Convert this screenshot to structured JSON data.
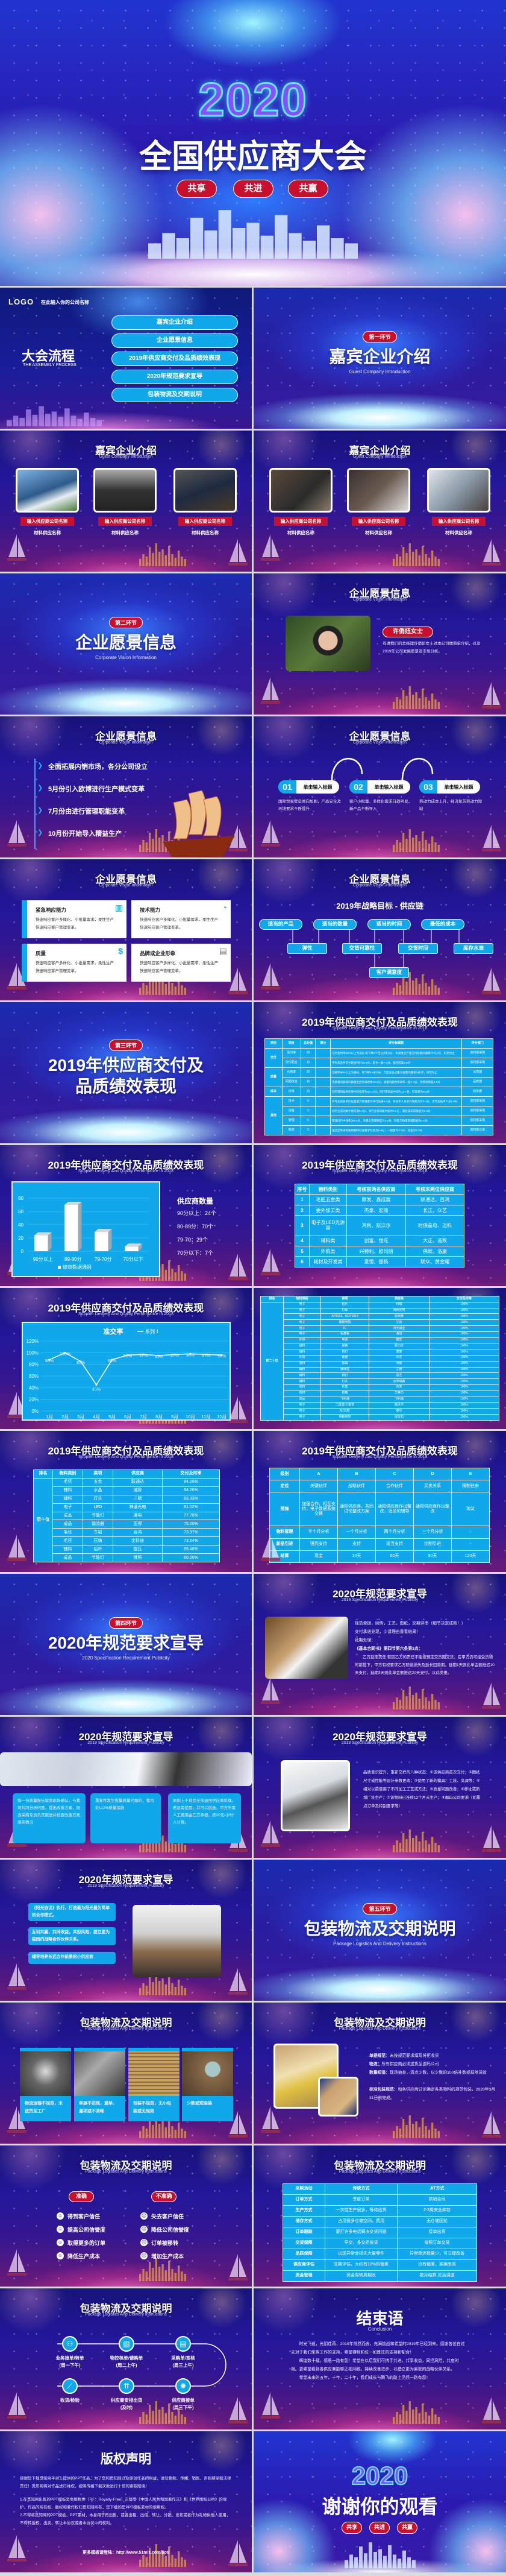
{
  "hero": {
    "year": "2020",
    "title": "全国供应商大会",
    "pills": [
      "共享",
      "共进",
      "共赢"
    ]
  },
  "slides": [
    {
      "type": "agenda",
      "logo": "LOGO",
      "company": "在此输入你的公司名称",
      "title": "大会流程",
      "subtitle": "THE ASSEMBLY PROCESS",
      "items": [
        "嘉宾企业介绍",
        "企业愿景信息",
        "2019年供应商交付及品质绩效表现",
        "2020年规范要求宣导",
        "包装物流及交期说明"
      ]
    },
    {
      "type": "section",
      "badge": "第一环节",
      "title": "嘉宾企业介绍",
      "subtitle": "Guest Company Introduction"
    },
    {
      "type": "photos",
      "title": "嘉宾企业介绍",
      "subtitle": "Guest Company Introduction",
      "items": [
        {
          "name": "输入供应商公司名称",
          "material": "材料供应名称"
        },
        {
          "name": "输入供应商公司名称",
          "material": "材料供应名称"
        },
        {
          "name": "输入供应商公司名称",
          "material": "材料供应名称"
        }
      ]
    },
    {
      "type": "photos",
      "title": "嘉宾企业介绍",
      "subtitle": "Guest Company Introduction",
      "items": [
        {
          "name": "输入供应商公司名称",
          "material": "材料供应名称"
        },
        {
          "name": "输入供应商公司名称",
          "material": "材料供应名称"
        },
        {
          "name": "输入供应商公司名称",
          "material": "材料供应名称"
        }
      ]
    },
    {
      "type": "section",
      "badge": "第二环节",
      "title": "企业愿景信息",
      "subtitle": "Corporate Vision Information"
    },
    {
      "type": "profile",
      "title": "企业愿景信息",
      "subtitle": "Corporate Vision Information",
      "name": "许俏妞女士",
      "text": "有请我们的总经理许俏妞女士对本公司做简单介绍，以及2019年公司发展愿景及市场分析。"
    },
    {
      "type": "bullets",
      "title": "企业愿景信息",
      "subtitle": "Corporate Vision Information",
      "items": [
        "全面拓展内销市场，各分公司设立",
        "5月份引入欧博进行生产模式变革",
        "7月份由进行管理职能变革",
        "10月份开始导入精益生产"
      ]
    },
    {
      "type": "steps",
      "title": "企业愿景信息",
      "subtitle": "Corporate Vision Information",
      "items": [
        {
          "num": "01",
          "label": "单击输入标题",
          "desc": "国际贸易壁垒倾向加剧，产品安全及环境要求不断提升"
        },
        {
          "num": "02",
          "label": "单击输入标题",
          "desc": "客户小批量、多样化需求日趋明显，新产品不断导入"
        },
        {
          "num": "03",
          "label": "单击输入标题",
          "desc": "劳动力成本上升，经济复苏劳动力短缺"
        }
      ]
    },
    {
      "type": "cards",
      "title": "企业愿景信息",
      "subtitle": "Corporate Vision Information",
      "items": [
        {
          "title": "紧急响应能力",
          "text": "快速响应客户多样化、小批量需求，柔性生产快速响应客户管理变革。",
          "icon": "chart-icon"
        },
        {
          "title": "技术能力",
          "text": "快速响应客户多样化、小批量需求，柔性生产快速响应客户管理变革。",
          "icon": "bulb-icon"
        },
        {
          "title": "质量",
          "text": "快速响应客户多样化、小批量需求，柔性生产快速响应客户管理变革。",
          "icon": "dollar-icon"
        },
        {
          "title": "品牌或企业形象",
          "text": "快速响应客户多样化、小批量需求，柔性生产快速响应客户管理变革。",
          "icon": "news-icon"
        }
      ]
    },
    {
      "type": "flow",
      "title": "企业愿景信息",
      "subtitle": "Corporate Vision Information",
      "heading": "2019年战略目标 - 供应链",
      "top": [
        "适当的产品",
        "适当的数量",
        "适当的时间",
        "最低的成本"
      ],
      "middle": [
        "弹性",
        "交货可靠性",
        "交货时间",
        "库存水准"
      ],
      "bottom": "客户满意度"
    },
    {
      "type": "section",
      "badge": "第三环节",
      "title": "2019年供应商交付及\n品质绩效表现",
      "subtitle": ""
    },
    {
      "type": "table",
      "variant": "score",
      "title": "2019年供应商交付及品质绩效表现",
      "subtitle": "Supplier Delivery And Quality Performance In 2018",
      "headers": [
        "类别",
        "项目",
        "总分值",
        "得分",
        "评分标细则",
        "评分部门"
      ],
      "groups": [
        {
          "group": "交付",
          "rows": [
            [
              "及时率",
              "20",
              "",
              "交付及时率90%以上为满分,每下降1个百分点扣1分，年度发生严重交付延期问题累计2分/次，扣完为止",
              "资材部采购"
            ],
            [
              "交付配合",
              "10",
              "",
              "平时及急件交付配合较好10-8分，配合一般7-4分，配合较差3-0分",
              "资材部采购"
            ]
          ]
        },
        {
          "group": "质量",
          "rows": [
            [
              "合格率",
              "20",
              "",
              "合格率98%以上为满分，每下降1%扣1分，年度发生过重大质量问题扣2分/次，扣完为止",
              "品质部"
            ],
            [
              "问题改善",
              "10",
              "",
              "无质量问题或问题发生后有效改善10-8分，质量问题改善效率一般7-4分，改善效果差3-0分",
              "品质部"
            ]
          ]
        },
        {
          "group": "成本",
          "rows": [
            [
              "价格",
              "20",
              "",
              "同行或同类供应商中较低者为20-14分，同行或同类中间为13-7分，较高者为6-0分",
              "财务部"
            ]
          ]
        },
        {
          "group": "其他",
          "rows": [
            [
              "技术",
              "5",
              "",
              "有专业的技术队伍且能力较强者为同行先进5-4分，有技术人员及开发能力为3-2分，无专业技术人员1-0分",
              "资材部采购"
            ],
            [
              "设备",
              "5",
              "",
              "同行业或同类中领先者5-4分，同行业或同类中居中3-2分，落后或非常落后为1-0分",
              "资材部采购"
            ],
            [
              "管理",
              "5",
              "",
              "管理同行中领先为5-4分，有健全管理制度为3-2分，制度欠缺或管理较弱为1-0分",
              "资材部采购"
            ],
            [
              "物流",
              "5",
              "",
              "送货至珠海及按照物料标准要求包装为5-4分，一般者为3-2分，较差为1-0分",
              "资材部仓库"
            ]
          ]
        }
      ]
    },
    {
      "type": "bar",
      "title": "2019年供应商交付及品质绩效表现",
      "subtitle": "Supplier Delivery And Quality Performance In 2018",
      "chart": 0,
      "legend_title": "供应商数量",
      "legend_lines": [
        "90分以上：24个",
        "80-89分：70个",
        "79-70：29个",
        "70分以下：7个"
      ]
    },
    {
      "type": "table",
      "variant": "rank",
      "title": "2019年供应商交付及品质绩效表现",
      "subtitle": "Supplier Delivery And Quality Performance In 2018",
      "headers": [
        "序号",
        "物料类别",
        "考核前两名供应商",
        "考核末两位供应商"
      ],
      "rows": [
        [
          "1",
          "毛胚五金类",
          "顺发、鑫成展",
          "联通达、百鸿"
        ],
        [
          "2",
          "委外加工类",
          "杰泰、宏鼎",
          "长江、众艺"
        ],
        [
          "3",
          "电子及LED光源类",
          "鸿利、斯沃尔",
          "时保晶电、迈科"
        ],
        [
          "4",
          "辅料类",
          "创富、恒旺",
          "大正、诚致"
        ],
        [
          "5",
          "外购类",
          "兴特利、欧司朗",
          "佛照、洛康"
        ],
        [
          "6",
          "耗材及开发类",
          "意恒、振扬",
          "联众、黄金耀"
        ]
      ]
    },
    {
      "type": "line",
      "title": "2019年供应商交付及品质绩效表现",
      "subtitle": "Supplier Delivery And Quality Performance In 2018",
      "chart": 1
    },
    {
      "type": "table",
      "variant": "top20",
      "title": "",
      "subtitle": "",
      "headers": [
        "排名",
        "物料类别",
        "类项",
        "供应商",
        "交付及时率"
      ],
      "groups": [
        {
          "group": "前二十位",
          "rows": [
            [
              "电子",
              "贴片",
              "科瑞",
              "100%"
            ],
            [
              "电子",
              "灯珠",
              "鸿利光电",
              "100%"
            ],
            [
              "电子",
              "AP4313、NCP1014",
              "宏启微",
              "100%"
            ],
            [
              "电子",
              "碳膜电阻",
              "立创",
              "100%"
            ],
            [
              "电子",
              "IC",
              "鸿光诚业",
              "100%"
            ],
            [
              "电子",
              "铝基板",
              "海创",
              "100%"
            ],
            [
              "外协",
              "电源",
              "鑫宏",
              "100%"
            ],
            [
              "辅料",
              "弹簧",
              "颖力达",
              "100%"
            ],
            [
              "辅料",
              "铜钉",
              "康富",
              "100%"
            ],
            [
              "外协",
              "硅胶",
              "众艺",
              "100%"
            ],
            [
              "包材",
              "胶袋",
              "鸿成",
              "100%"
            ],
            [
              "辅料",
              "接线柱",
              "艾普",
              "100%"
            ],
            [
              "辅料",
              "铆钉",
              "富艺",
              "100%"
            ],
            [
              "辅料",
              "灯头",
              "云泽瑞鑫",
              "100%"
            ],
            [
              "包材",
              "彩盒",
              "东发",
              "100%"
            ],
            [
              "包材",
              "纸箱",
              "华美力",
              "100%"
            ],
            [
              "成品",
              "飞利浦",
              "飞利浦",
              "100%"
            ],
            [
              "电子",
              "二极管/三极管",
              "施沃尔",
              "100%"
            ],
            [
              "电子",
              "MOS管",
              "泰尔",
              "100%"
            ],
            [
              "电子",
              "电解电容",
              "绿宝石",
              "100%"
            ]
          ]
        }
      ]
    },
    {
      "type": "table",
      "variant": "bottom10",
      "title": "2019年供应商交付及品质绩效表现",
      "subtitle": "Supplier Delivery And Quality Performance In 2018",
      "headers": [
        "排名",
        "物料类别",
        "类项",
        "供应商",
        "交付及时率"
      ],
      "groups": [
        {
          "group": "后十位",
          "rows": [
            [
              "毛坯",
              "五金",
              "联通达",
              "84.26%"
            ],
            [
              "辅料",
              "水晶",
              "诚致",
              "84.26%"
            ],
            [
              "辅料",
              "灯头",
              "三赋",
              "83.33%"
            ],
            [
              "电子",
              "LED",
              "神通光电",
              "81.02%"
            ],
            [
              "成品",
              "节能灯",
              "湘电",
              "77.78%"
            ],
            [
              "成品",
              "镇流器",
              "亚得",
              "75.00%"
            ],
            [
              "毛坯",
              "车铝",
              "百鸿",
              "73.97%"
            ],
            [
              "毛坯",
              "压铸",
              "金科迪",
              "73.64%"
            ],
            [
              "辅料",
              "铝杯",
              "旋压",
              "69.48%"
            ],
            [
              "成品",
              "节能灯",
              "佛照",
              "60.00%"
            ]
          ]
        }
      ]
    },
    {
      "type": "table",
      "variant": "level",
      "title": "2019年供应商交付及品质绩效表现",
      "subtitle": "Supplier Delivery And Quality Performance In 2018",
      "headers": [
        "级别",
        "A",
        "B",
        "C",
        "D",
        "E"
      ],
      "rows": [
        [
          "定位",
          "关键伙伴",
          "战略伙伴",
          "合作伙伴",
          "买卖关系",
          "限制往来"
        ],
        [
          "措施",
          "加强合作，相互支持，电子数据系统交换",
          "通知供应商，共同讨论整改方案",
          "通知供应商作出整改，适当的辅导",
          "通知供应商作出整改",
          "淘汰"
        ],
        [
          "物料管理",
          "半个月分析",
          "一个月分析",
          "两个月分析",
          "三个月分析",
          "-"
        ],
        [
          "新品引进",
          "强烈支持",
          "支持",
          "适当支持",
          "控制引进",
          "-"
        ],
        [
          "结算",
          "现金",
          "30天",
          "60天",
          "90天",
          "120天"
        ]
      ]
    },
    {
      "type": "section",
      "badge": "第四环节",
      "title": "2020年规范要求宣导",
      "subtitle": "2020 Specification Requirement Publicity"
    },
    {
      "type": "spec1",
      "title": "2020年规范要求宣导",
      "subtitle": "2019 Specification Requirement Publicity",
      "bullets": [
        "规范单据，回传，工艺，图纸，交期评审（细节决定成败！）",
        "交付承诺兑现，少讲理由重看结果！",
        "延期处理："
      ],
      "clause": "《基本合同书》第四节第六条第3点：",
      "paragraph": "乙方延期责任:若因乙方的责任不能按预定交货期交货，在甲方仍可接受货物的前提下，甲方有权要求乙方赔偿损失及延长回款期。延期1天则此单金额推迟10天支付，延期2天则此单金额推迟20天支付，以此类推。"
    },
    {
      "type": "spec2",
      "title": "2020年规范要求宣导",
      "subtitle": "2019 Specification Requirement Publicity",
      "cards": [
        "每一份质量报告需到现场确认，与我司共同分析问题，提出改善方案，担当采购专员负责跟进并检查改善方案落实情况",
        "重复性发生批量质量问题的，我司处以2%质量扣款",
        "原则上不良品全部退回供应商处理。若急需使用，并可以挑选，甲方所需人工费用由乙方承担，按20元/小时*人计算。"
      ]
    },
    {
      "type": "spec3",
      "title": "2020年规范要求宣导",
      "subtitle": "2019 Specification Requirement Publicity",
      "text": "品质意识提升，重新交样的八种状态：①该供应商首次交付；②图纸尺寸或性能等设计参数更改；③使用了新的模具、工装、夹具等；④相对以前使用了不同加工工艺或方法；⑤质量问题改善；⑥移址或新增厂址生产；⑦该物料已连续12个月未生产；⑧珈玛公司要求（如重点订单及特别要求等）"
    },
    {
      "type": "spec4",
      "title": "2020年规范要求宣导",
      "subtitle": "2019 Specification Requirement Publicity",
      "boxes": [
        "《阳光协议》执行，打造最为阳光最为简单的合作模式。",
        "互利共赢，共同收益，共担风险，建立更为稳固的战略合作伙伴关系。",
        "辅导培养长远合作前景的小供应商"
      ]
    },
    {
      "type": "section",
      "badge": "第五环节",
      "title": "包装物流及交期说明",
      "subtitle": "Package Logistics And Delivery Instructions"
    },
    {
      "type": "pkgphotos",
      "title": "包装物流及交期说明",
      "subtitle": "Package Logistics And Delivery Instructions",
      "captions": [
        "物流运输不规范，未送货至工厂",
        "单据不范规，漏单、漏项或不清晰",
        "包装不规范，无小包装或无规则",
        "少数或短溢装"
      ]
    },
    {
      "type": "pkgrules",
      "title": "包装物流及交期说明",
      "subtitle": "Package Logistics And Delivery Instructions",
      "rules": [
        {
          "label": "单据规范：",
          "text": "未按规范要求填写将拒收货"
        },
        {
          "label": "物流：",
          "text": "所有供应商必须送货至珈玛公司"
        },
        {
          "label": "数量短溢：",
          "text": "现场抽查，清点少数，以少数的100倍补数或扣除货款"
        },
        {
          "label": "标准包装规范：",
          "text": "和各供应商讨论确定各类物料的规范包装，2020年3月31日前完成。"
        }
      ]
    },
    {
      "type": "accurate",
      "title": "包装物流及交期说明",
      "subtitle": "Package Logistics And Delivery Instructions",
      "good": {
        "label": "准确",
        "items": [
          "得到客户信任",
          "提高公司信誉度",
          "取得更多的订单",
          "降低生产成本"
        ]
      },
      "bad": {
        "label": "不准确",
        "items": [
          "失去客户信任",
          "降低公司信誉度",
          "订单被移转",
          "增加生产成本"
        ]
      }
    },
    {
      "type": "table",
      "variant": "jit",
      "title": "包装物流及交期说明",
      "subtitle": "Package Logistics And Delivery Instructions",
      "headers": [
        "采购活动",
        "传统方式",
        "JIT方式"
      ],
      "rows": [
        [
          "订单方式",
          "季度订单",
          "供销合同"
        ],
        [
          "生产方式",
          "一次性生产很多，等待出货",
          "2-3周安全库存"
        ],
        [
          "储存方式",
          "占用很多仓储空间，费用",
          "无仓储困扰"
        ],
        [
          "订单跟踪",
          "要打许多电话解决交货问题",
          "接单出货"
        ],
        [
          "交货保障",
          "早交，多交拒收货",
          "按照订单交货"
        ],
        [
          "品质保障",
          "出现异常会损失大量零件",
          "异常牵连数量少，可立即改善"
        ],
        [
          "供应商评估",
          "交期评估，大约有10%的偏差",
          "没有偏差，准确率高"
        ],
        [
          "资金管理",
          "资金周转周期长",
          "按月结算,灵活调度"
        ]
      ]
    },
    {
      "type": "process",
      "title": "包装物流及交期说明",
      "subtitle": "Package Logistics And Delivery Instructions",
      "nodes": [
        {
          "label": "业务接单/转单",
          "note": "(周一下午)",
          "icon": "org-icon"
        },
        {
          "label": "物控核单/请购单",
          "note": "(周二上午)",
          "icon": "presentation-icon"
        },
        {
          "label": "采购单/签核",
          "note": "(周三上午)",
          "icon": "bar-chart-icon"
        },
        {
          "label": "供应商接单",
          "note": "(周三下午)",
          "icon": "network-icon"
        },
        {
          "label": "供应商安排出货",
          "note": "(及时)",
          "icon": "arrows-up-icon"
        },
        {
          "label": "收货/检验",
          "note": "",
          "icon": "line-chart-icon"
        }
      ]
    },
    {
      "type": "conclusion",
      "title": "结束语",
      "subtitle": "Conclusion",
      "paragraphs": [
        "时光飞逝，光阴荏苒，2019年悄然而去，充满挑战和希望的2019年已经到来。感谢各位在过去对于我们采购工作的支持，希望得到和位一如既往的支持和配合！",
        "辉煌数十载，感恩一路有您！希望在以后我们可携手共进，共享收益，同担风险，共度时艰。更希望看到各供应商能够正视问题，持续改善进步，以建立更为紧密的战略伙伴关系。",
        "希望未来的五年，十年，二十年，我们成长与腾飞的路上仍然一路有您！"
      ]
    },
    {
      "type": "copyright",
      "title": "版权声明",
      "paragraphs": [
        "感谢您下载觅知网平台上提供的PPT作品，为了您和觅知网以及原创作者的利益，请勿复制、传播、销售，否则将承担法律责任！觅知网将对作品进行维权，按照传播下载次数进行十倍的索取赔偿！",
        "1.在觅知网出售的PPT模板是免版税类（RF：Royalty-Free）正版受《中国人民共和国著作法》和《世界版权公约》的保护，作品的所有权、版权和著作权归觅知网所有，您下载的是PPT模板素材的使用权。",
        "2.不得将觅知网的PPT模板、PPT素材，本身用于再出售，或者出租、出借、转让、分销、发布或者作为礼物供他人使用，不得转授权、出卖、转让本协议或者本协议中的权利。"
      ],
      "url": "更多模板请登陆：http://www.51miz.com/ppt/"
    },
    {
      "type": "thanks",
      "year": "2020",
      "title": "谢谢你的观看",
      "pills": [
        "共享",
        "共进",
        "共赢"
      ]
    }
  ],
  "chart_data": [
    {
      "type": "bar",
      "categories": [
        "90分以上",
        "89-80分",
        "79-70分",
        "70分以下"
      ],
      "values": [
        24,
        70,
        29,
        7
      ],
      "legend": "绩效数据通报",
      "ylim": [
        0,
        80
      ],
      "yticks": [
        0,
        20,
        40,
        60,
        80
      ],
      "title": "",
      "xlabel": "",
      "ylabel": ""
    },
    {
      "type": "line",
      "title": "准交率",
      "legend": "系列 1",
      "categories": [
        "1月",
        "2月",
        "3月",
        "4月",
        "5月",
        "6月",
        "7月",
        "8月",
        "9月",
        "10月",
        "11月",
        "12月"
      ],
      "values": [
        88,
        100,
        85,
        45,
        88,
        96,
        97,
        95,
        97,
        98,
        97,
        96
      ],
      "labels": [
        "88%",
        "100%",
        "85%",
        "45%",
        "88%",
        "96%",
        "97%",
        "95%",
        "97%",
        "98%",
        "97%",
        "96%"
      ],
      "ylim": [
        0,
        120
      ],
      "yticks": [
        "0%",
        "20%",
        "40%",
        "60%",
        "80%",
        "100%",
        "120%"
      ],
      "grid": true
    }
  ],
  "colors": {
    "accent_blue": "#10a8ea",
    "badge_red": "#c8102e",
    "navy": "#1a1480"
  }
}
